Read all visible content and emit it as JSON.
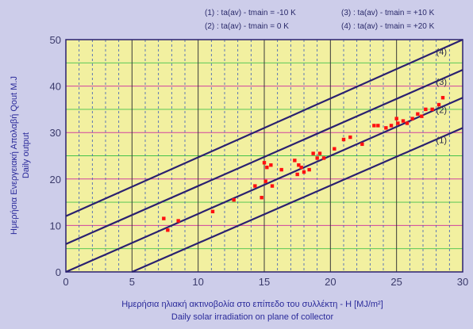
{
  "chart_data": {
    "type": "scatter",
    "title": "",
    "xlabel": "Ημερήσια ηλιακή ακτινοβολία στο επίπεδο του συλλέκτη - H [MJ/m²]",
    "xlabel2": "Daily solar irradiation on plane of collector",
    "ylabel": "Ημερήσια Ενεργειακή Απολαβή Qout M.J",
    "ylabel2": "Daily output",
    "xlim": [
      0,
      30
    ],
    "ylim": [
      0,
      50
    ],
    "xticks": [
      "0",
      "5",
      "10",
      "15",
      "20",
      "25",
      "30"
    ],
    "yticks": [
      "0",
      "10",
      "20",
      "30",
      "40",
      "50"
    ],
    "grid": true,
    "legend": [
      "(1) : ta(av) - tmain = -10 K",
      "(2) : ta(av) - tmain = 0 K",
      "(3) : ta(av) - tmain = +10 K",
      "(4) : ta(av) - tmain = +20 K"
    ],
    "legend_position": "top-right",
    "lines": [
      {
        "label": "(1)",
        "x": [
          5,
          30
        ],
        "y": [
          0,
          31
        ]
      },
      {
        "label": "(2)",
        "x": [
          0,
          30
        ],
        "y": [
          0,
          37.5
        ]
      },
      {
        "label": "(3)",
        "x": [
          0,
          30
        ],
        "y": [
          6,
          43.5
        ]
      },
      {
        "label": "(4)",
        "x": [
          0,
          30
        ],
        "y": [
          12,
          50
        ]
      }
    ],
    "points": {
      "x": [
        7.4,
        7.7,
        8.5,
        11.1,
        12.7,
        14.3,
        14.8,
        15.0,
        15.1,
        15.2,
        15.5,
        15.6,
        16.3,
        17.3,
        17.5,
        17.6,
        17.8,
        18.0,
        18.4,
        18.7,
        19.0,
        19.2,
        19.5,
        20.3,
        21.0,
        21.5,
        22.4,
        23.3,
        23.6,
        24.2,
        24.6,
        25.0,
        25.1,
        25.5,
        25.8,
        26.2,
        26.6,
        26.9,
        27.2,
        27.7,
        28.2,
        28.5
      ],
      "y": [
        11.5,
        9.0,
        11.0,
        13.0,
        15.5,
        18.5,
        16.0,
        23.5,
        19.5,
        22.5,
        23.0,
        18.5,
        22.0,
        24.0,
        21.0,
        23.0,
        22.5,
        21.5,
        22.0,
        25.5,
        24.5,
        25.5,
        24.5,
        26.5,
        28.5,
        29.0,
        27.5,
        31.5,
        31.5,
        31.0,
        31.5,
        33.0,
        32.0,
        32.5,
        32.0,
        33.0,
        34.0,
        33.5,
        35.0,
        35.0,
        36.0,
        37.5
      ]
    },
    "colors": {
      "plot_background": "#f2f0a0",
      "page_background": "#cdcdea",
      "curves": "#2a2070",
      "points": "#ff1010",
      "axis_text": "#2a2a9a",
      "tick_text": "#3a3a6a",
      "grid_green": "#44c24a",
      "grid_magenta": "#d040a0",
      "grid_blue": "#3a5ab8"
    }
  }
}
